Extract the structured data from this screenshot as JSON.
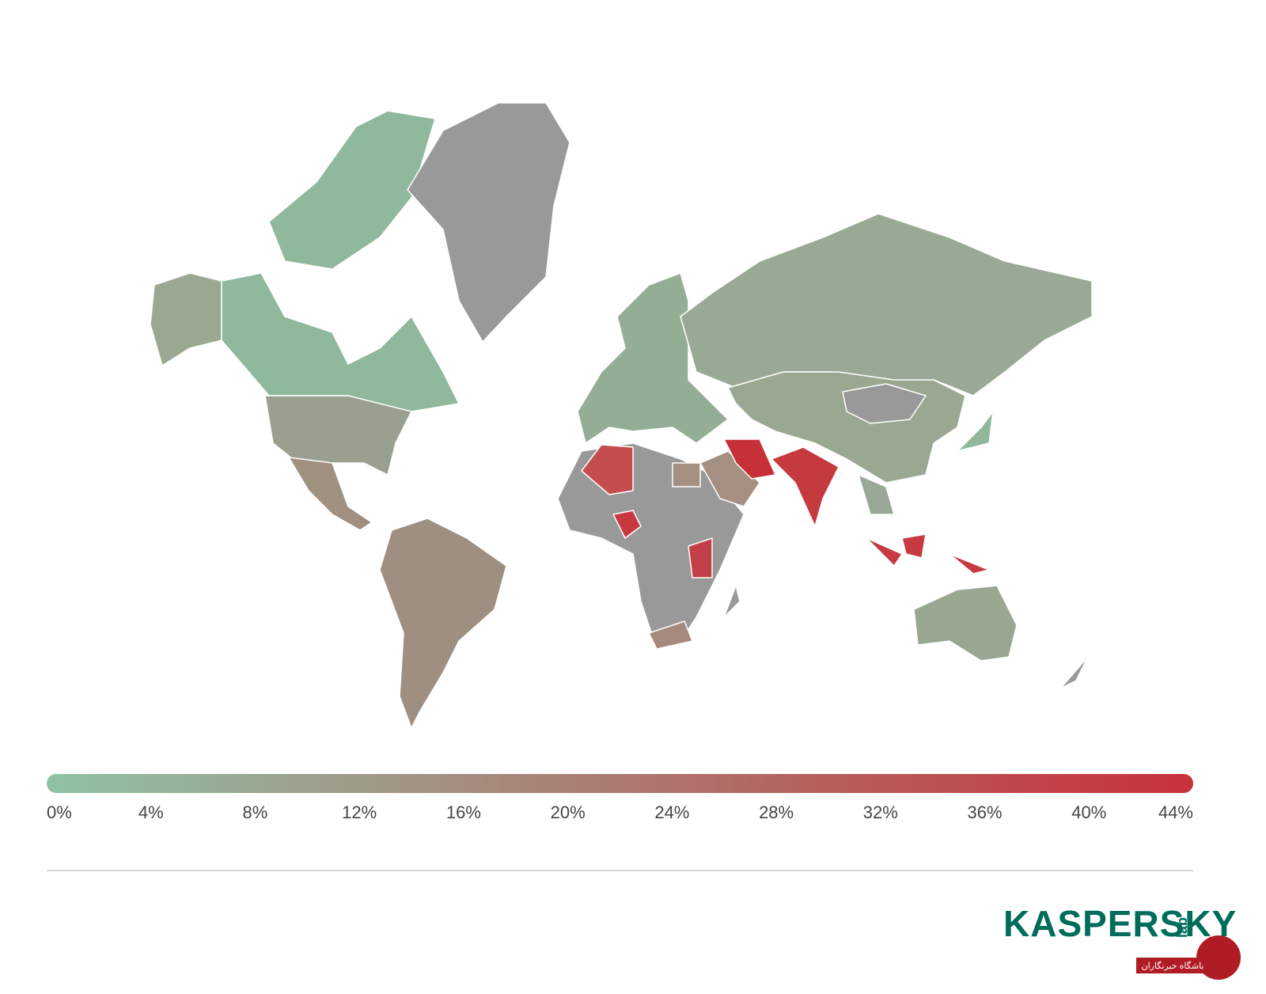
{
  "legend": {
    "ticks": [
      {
        "value": 0,
        "label": "0%"
      },
      {
        "value": 4,
        "label": "4%"
      },
      {
        "value": 8,
        "label": "8%"
      },
      {
        "value": 12,
        "label": "12%"
      },
      {
        "value": 16,
        "label": "16%"
      },
      {
        "value": 20,
        "label": "20%"
      },
      {
        "value": 24,
        "label": "24%"
      },
      {
        "value": 28,
        "label": "28%"
      },
      {
        "value": 32,
        "label": "32%"
      },
      {
        "value": 36,
        "label": "36%"
      },
      {
        "value": 40,
        "label": "40%"
      },
      {
        "value": 44,
        "label": "44%"
      }
    ],
    "range": [
      0,
      44
    ],
    "colors": [
      "#8fc2a5",
      "#c8313b"
    ]
  },
  "logo": {
    "brand": "KASPERSKY",
    "suffix": "lab"
  },
  "watermark": "باشگاه خبرنگاران"
}
